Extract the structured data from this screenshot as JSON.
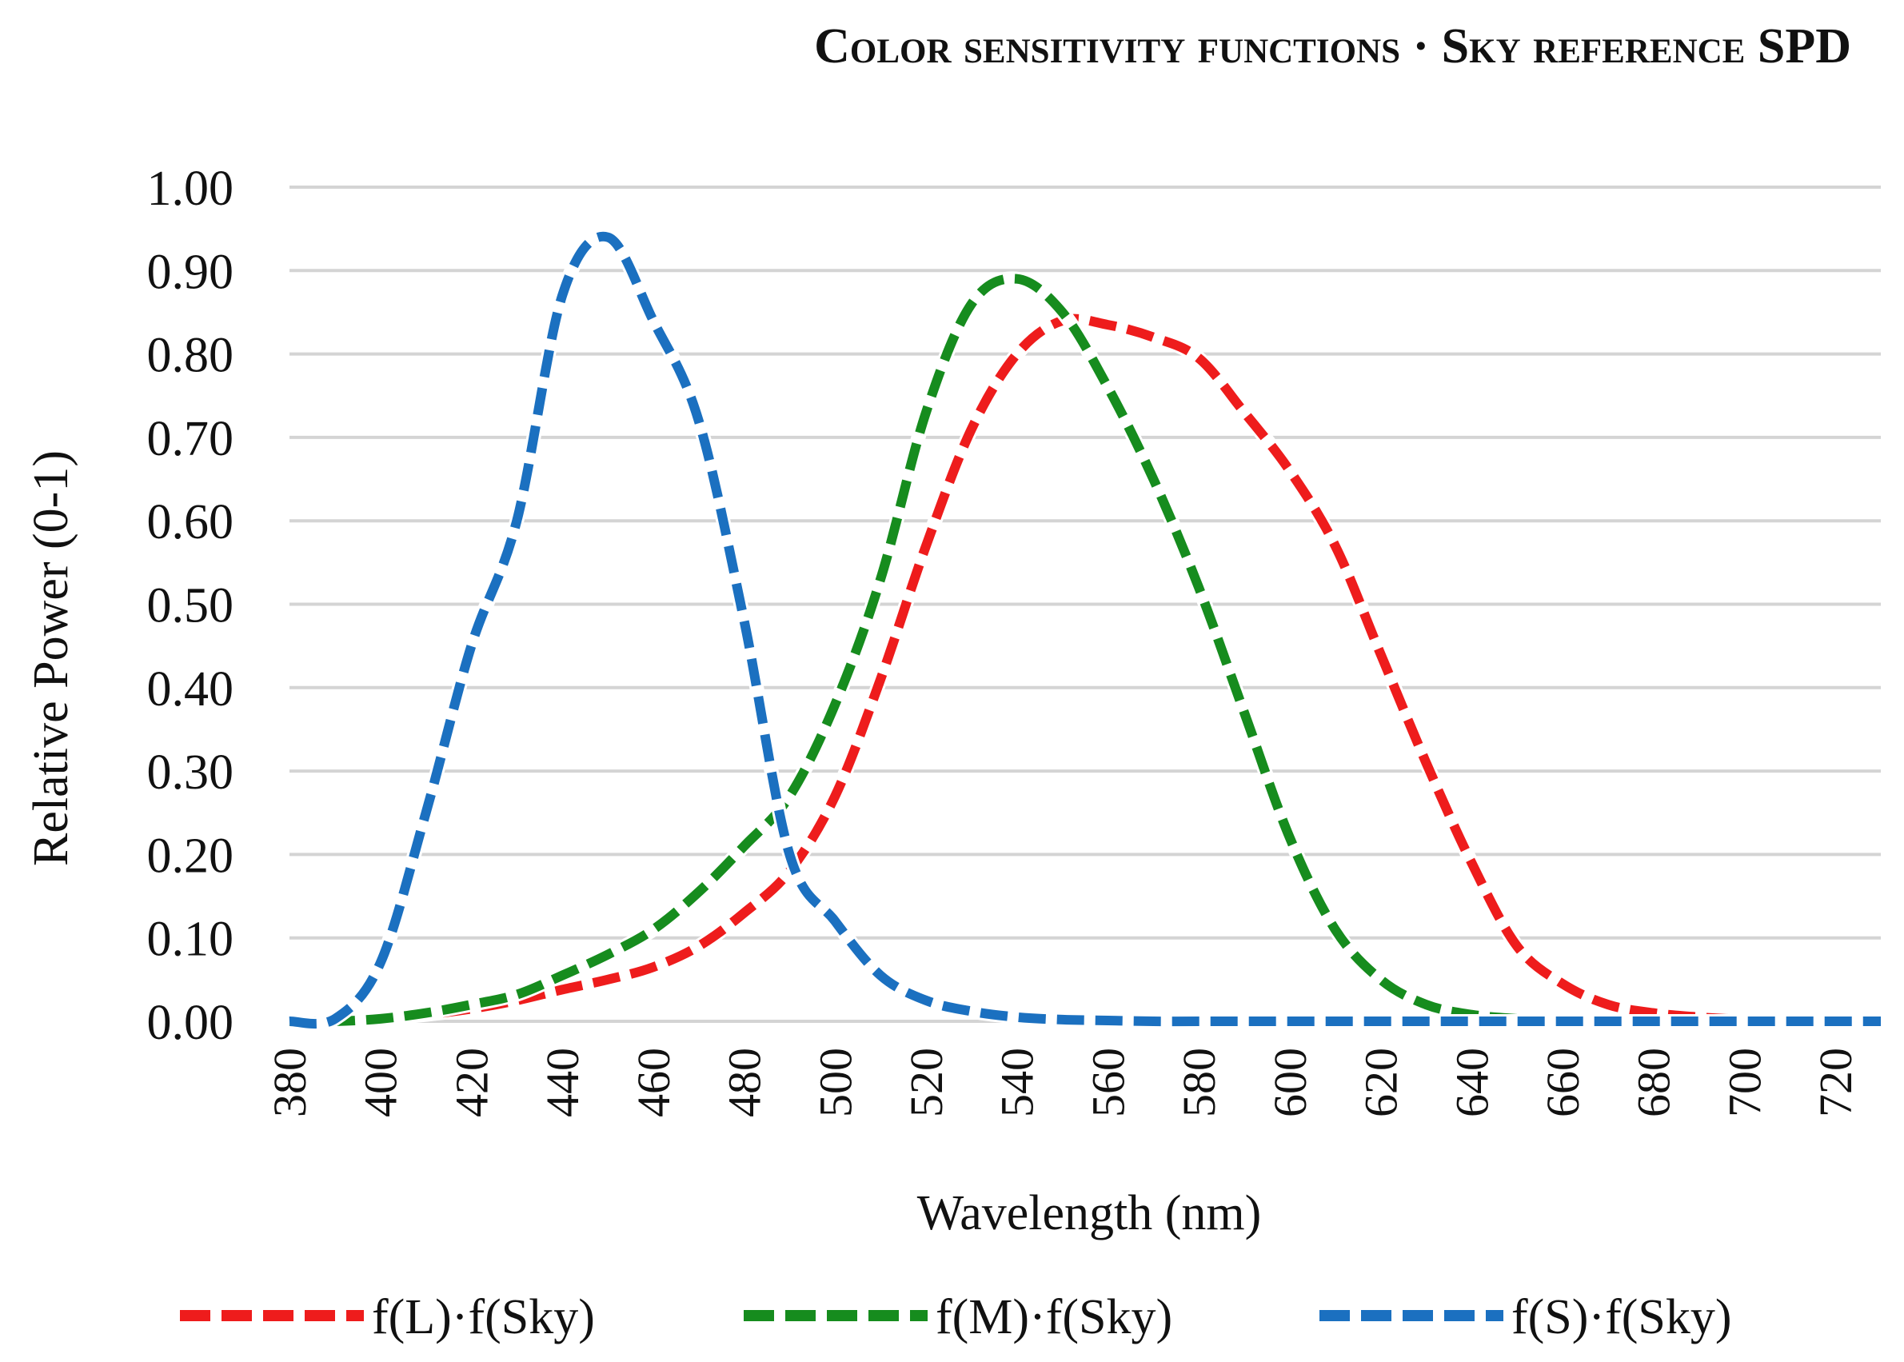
{
  "chart_data": {
    "type": "line",
    "title": "Color sensitivity functions · Sky reference SPD",
    "xlabel": "Wavelength (nm)",
    "ylabel": "Relative Power (0-1)",
    "xlim": [
      380,
      730
    ],
    "ylim": [
      0,
      1
    ],
    "xticks": [
      "380",
      "400",
      "420",
      "440",
      "460",
      "480",
      "500",
      "520",
      "540",
      "560",
      "580",
      "600",
      "620",
      "640",
      "660",
      "680",
      "700",
      "720"
    ],
    "yticks": [
      "0.00",
      "0.10",
      "0.20",
      "0.30",
      "0.40",
      "0.50",
      "0.60",
      "0.70",
      "0.80",
      "0.90",
      "1.00"
    ],
    "grid": "horizontal",
    "legend_position": "bottom",
    "x": [
      380,
      390,
      400,
      410,
      420,
      430,
      440,
      450,
      460,
      470,
      480,
      490,
      500,
      510,
      520,
      530,
      540,
      550,
      560,
      570,
      580,
      590,
      600,
      610,
      620,
      630,
      640,
      650,
      660,
      670,
      680,
      690,
      700,
      710,
      720,
      730
    ],
    "series": [
      {
        "name": "f(L)·f(Sky)",
        "color": "#ee1c1c",
        "values": [
          0,
          0,
          0.003,
          0.008,
          0.015,
          0.025,
          0.038,
          0.05,
          0.065,
          0.09,
          0.13,
          0.18,
          0.27,
          0.41,
          0.57,
          0.71,
          0.8,
          0.84,
          0.835,
          0.82,
          0.795,
          0.73,
          0.66,
          0.57,
          0.44,
          0.31,
          0.19,
          0.09,
          0.045,
          0.02,
          0.01,
          0.005,
          0.002,
          0.001,
          0,
          0
        ]
      },
      {
        "name": "f(M)·f(Sky)",
        "color": "#168c1e",
        "values": [
          0,
          0,
          0.003,
          0.01,
          0.02,
          0.032,
          0.055,
          0.08,
          0.11,
          0.155,
          0.21,
          0.27,
          0.38,
          0.53,
          0.73,
          0.86,
          0.89,
          0.85,
          0.76,
          0.65,
          0.52,
          0.37,
          0.22,
          0.11,
          0.05,
          0.02,
          0.008,
          0.003,
          0.001,
          0,
          0,
          0,
          0,
          0,
          0,
          0
        ]
      },
      {
        "name": "f(S)·f(Sky)",
        "color": "#1b70c0",
        "values": [
          0,
          0.003,
          0.07,
          0.25,
          0.45,
          0.6,
          0.87,
          0.94,
          0.84,
          0.72,
          0.48,
          0.2,
          0.12,
          0.055,
          0.025,
          0.012,
          0.005,
          0.002,
          0.001,
          0,
          0,
          0,
          0,
          0,
          0,
          0,
          0,
          0,
          0,
          0,
          0,
          0,
          0,
          0,
          0,
          0
        ]
      }
    ]
  }
}
